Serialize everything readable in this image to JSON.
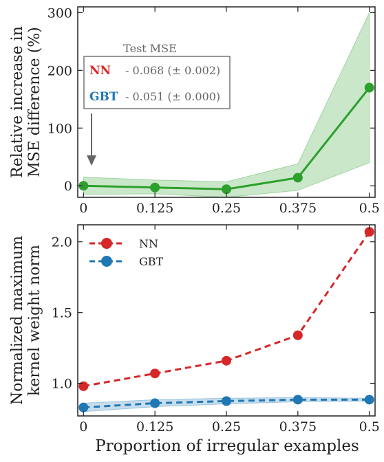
{
  "chart_data": [
    {
      "type": "line",
      "title": "",
      "ylabel_lines": [
        "Relative increase in",
        "MSE difference (%)"
      ],
      "xlabel": "",
      "x": [
        0,
        0.125,
        0.25,
        0.375,
        0.5
      ],
      "x_tick_labels": [
        "0",
        "0.125",
        "0.25",
        "0.375",
        "0.5"
      ],
      "ylim": [
        -20,
        310
      ],
      "y_ticks": [
        0,
        100,
        200,
        300
      ],
      "y_tick_labels": [
        "0",
        "100",
        "200",
        "300"
      ],
      "series": [
        {
          "name": "",
          "color": "#2ca02c",
          "values": [
            0,
            -3,
            -6,
            14,
            170
          ],
          "band_lower": [
            -15,
            -14,
            -20,
            -8,
            40
          ],
          "band_upper": [
            15,
            10,
            7,
            38,
            300
          ]
        }
      ],
      "arrow_at_x": 0,
      "annotation": {
        "title": "Test MSE",
        "rows": [
          {
            "name": "NN",
            "value": "- 0.068 (± 0.002)",
            "color": "#d62728"
          },
          {
            "name": "GBT",
            "value": "- 0.051 (± 0.000)",
            "color": "#1f77b4"
          }
        ]
      }
    },
    {
      "type": "line",
      "title": "",
      "ylabel_lines": [
        "Normalized maximum",
        "kernel weight norm"
      ],
      "xlabel": "Proportion of irregular examples",
      "x": [
        0,
        0.125,
        0.25,
        0.375,
        0.5
      ],
      "x_tick_labels": [
        "0",
        "0.125",
        "0.25",
        "0.375",
        "0.5"
      ],
      "ylim": [
        0.77,
        2.12
      ],
      "y_ticks": [
        1.0,
        1.5,
        2.0
      ],
      "y_tick_labels": [
        "1.0",
        "1.5",
        "2.0"
      ],
      "legend_position": "top-left",
      "series": [
        {
          "name": "NN",
          "color": "#d62728",
          "values": [
            0.98,
            1.07,
            1.16,
            1.34,
            2.07
          ],
          "band_lower": null,
          "band_upper": null
        },
        {
          "name": "GBT",
          "color": "#1f77b4",
          "values": [
            0.83,
            0.86,
            0.875,
            0.885,
            0.885
          ],
          "band_lower": [
            0.8,
            0.835,
            0.855,
            0.87,
            0.875
          ],
          "band_upper": [
            0.86,
            0.885,
            0.895,
            0.9,
            0.895
          ]
        }
      ]
    }
  ]
}
